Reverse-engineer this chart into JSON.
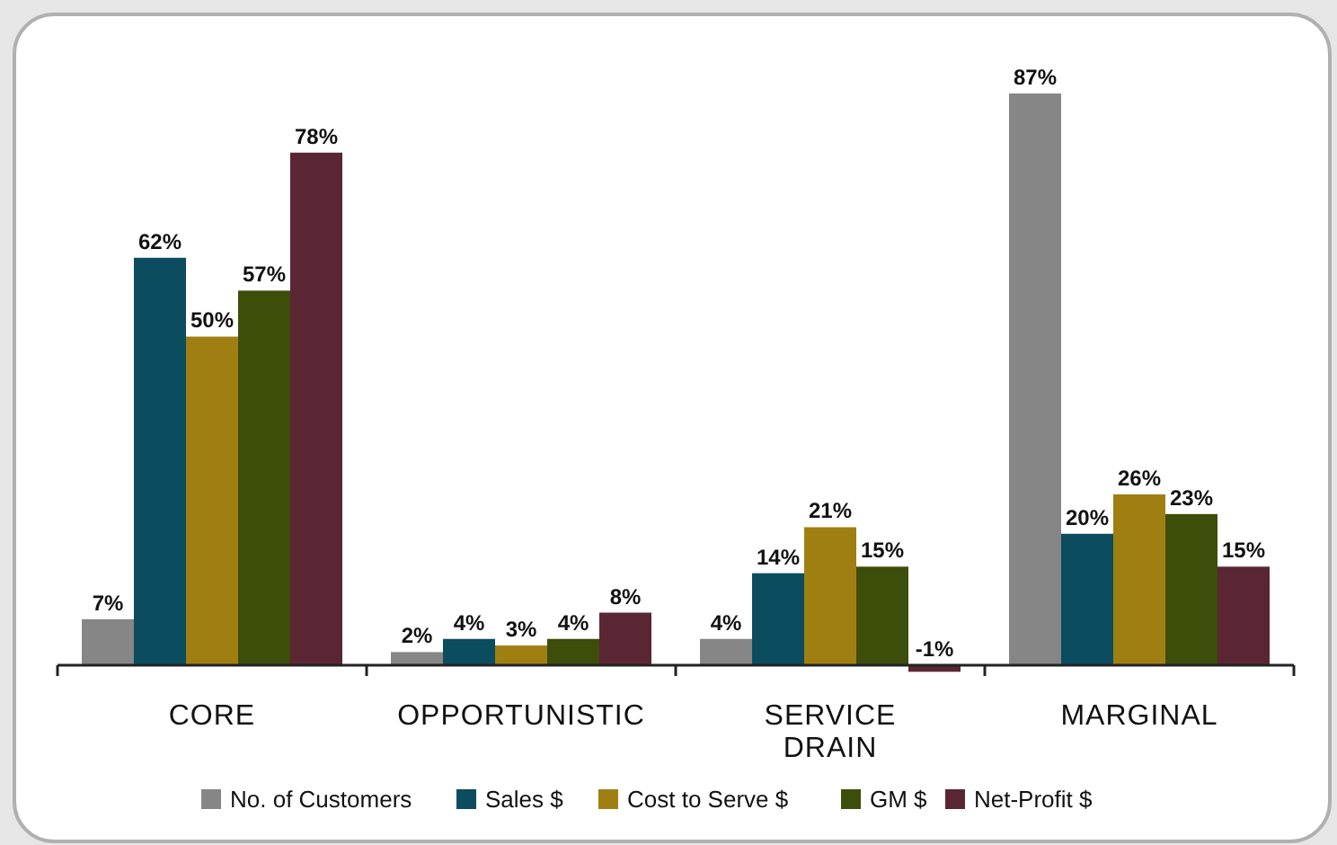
{
  "chart_data": {
    "type": "bar",
    "categories": [
      "CORE",
      "OPPORTUNISTIC",
      "SERVICE DRAIN",
      "MARGINAL"
    ],
    "legend": "bottom",
    "series": [
      {
        "name": "No. of Customers",
        "color": "#868686",
        "values": [
          7,
          2,
          4,
          87
        ],
        "value_labels": [
          "7%",
          "2%",
          "4%",
          "87%"
        ]
      },
      {
        "name": "Sales $",
        "color": "#0b4c5f",
        "values": [
          62,
          4,
          14,
          20
        ],
        "value_labels": [
          "62%",
          "4%",
          "14%",
          "20%"
        ]
      },
      {
        "name": "Cost to Serve $",
        "color": "#a07f12",
        "values": [
          50,
          3,
          21,
          26
        ],
        "value_labels": [
          "50%",
          "3%",
          "21%",
          "26%"
        ]
      },
      {
        "name": "GM $",
        "color": "#3d4d0a",
        "values": [
          57,
          4,
          15,
          23
        ],
        "value_labels": [
          "57%",
          "4%",
          "15%",
          "23%"
        ]
      },
      {
        "name": "Net-Profit $",
        "color": "#5a2634",
        "values": [
          78,
          8,
          -1,
          15
        ],
        "value_labels": [
          "78%",
          "8%",
          "-1%",
          "15%"
        ]
      }
    ]
  }
}
